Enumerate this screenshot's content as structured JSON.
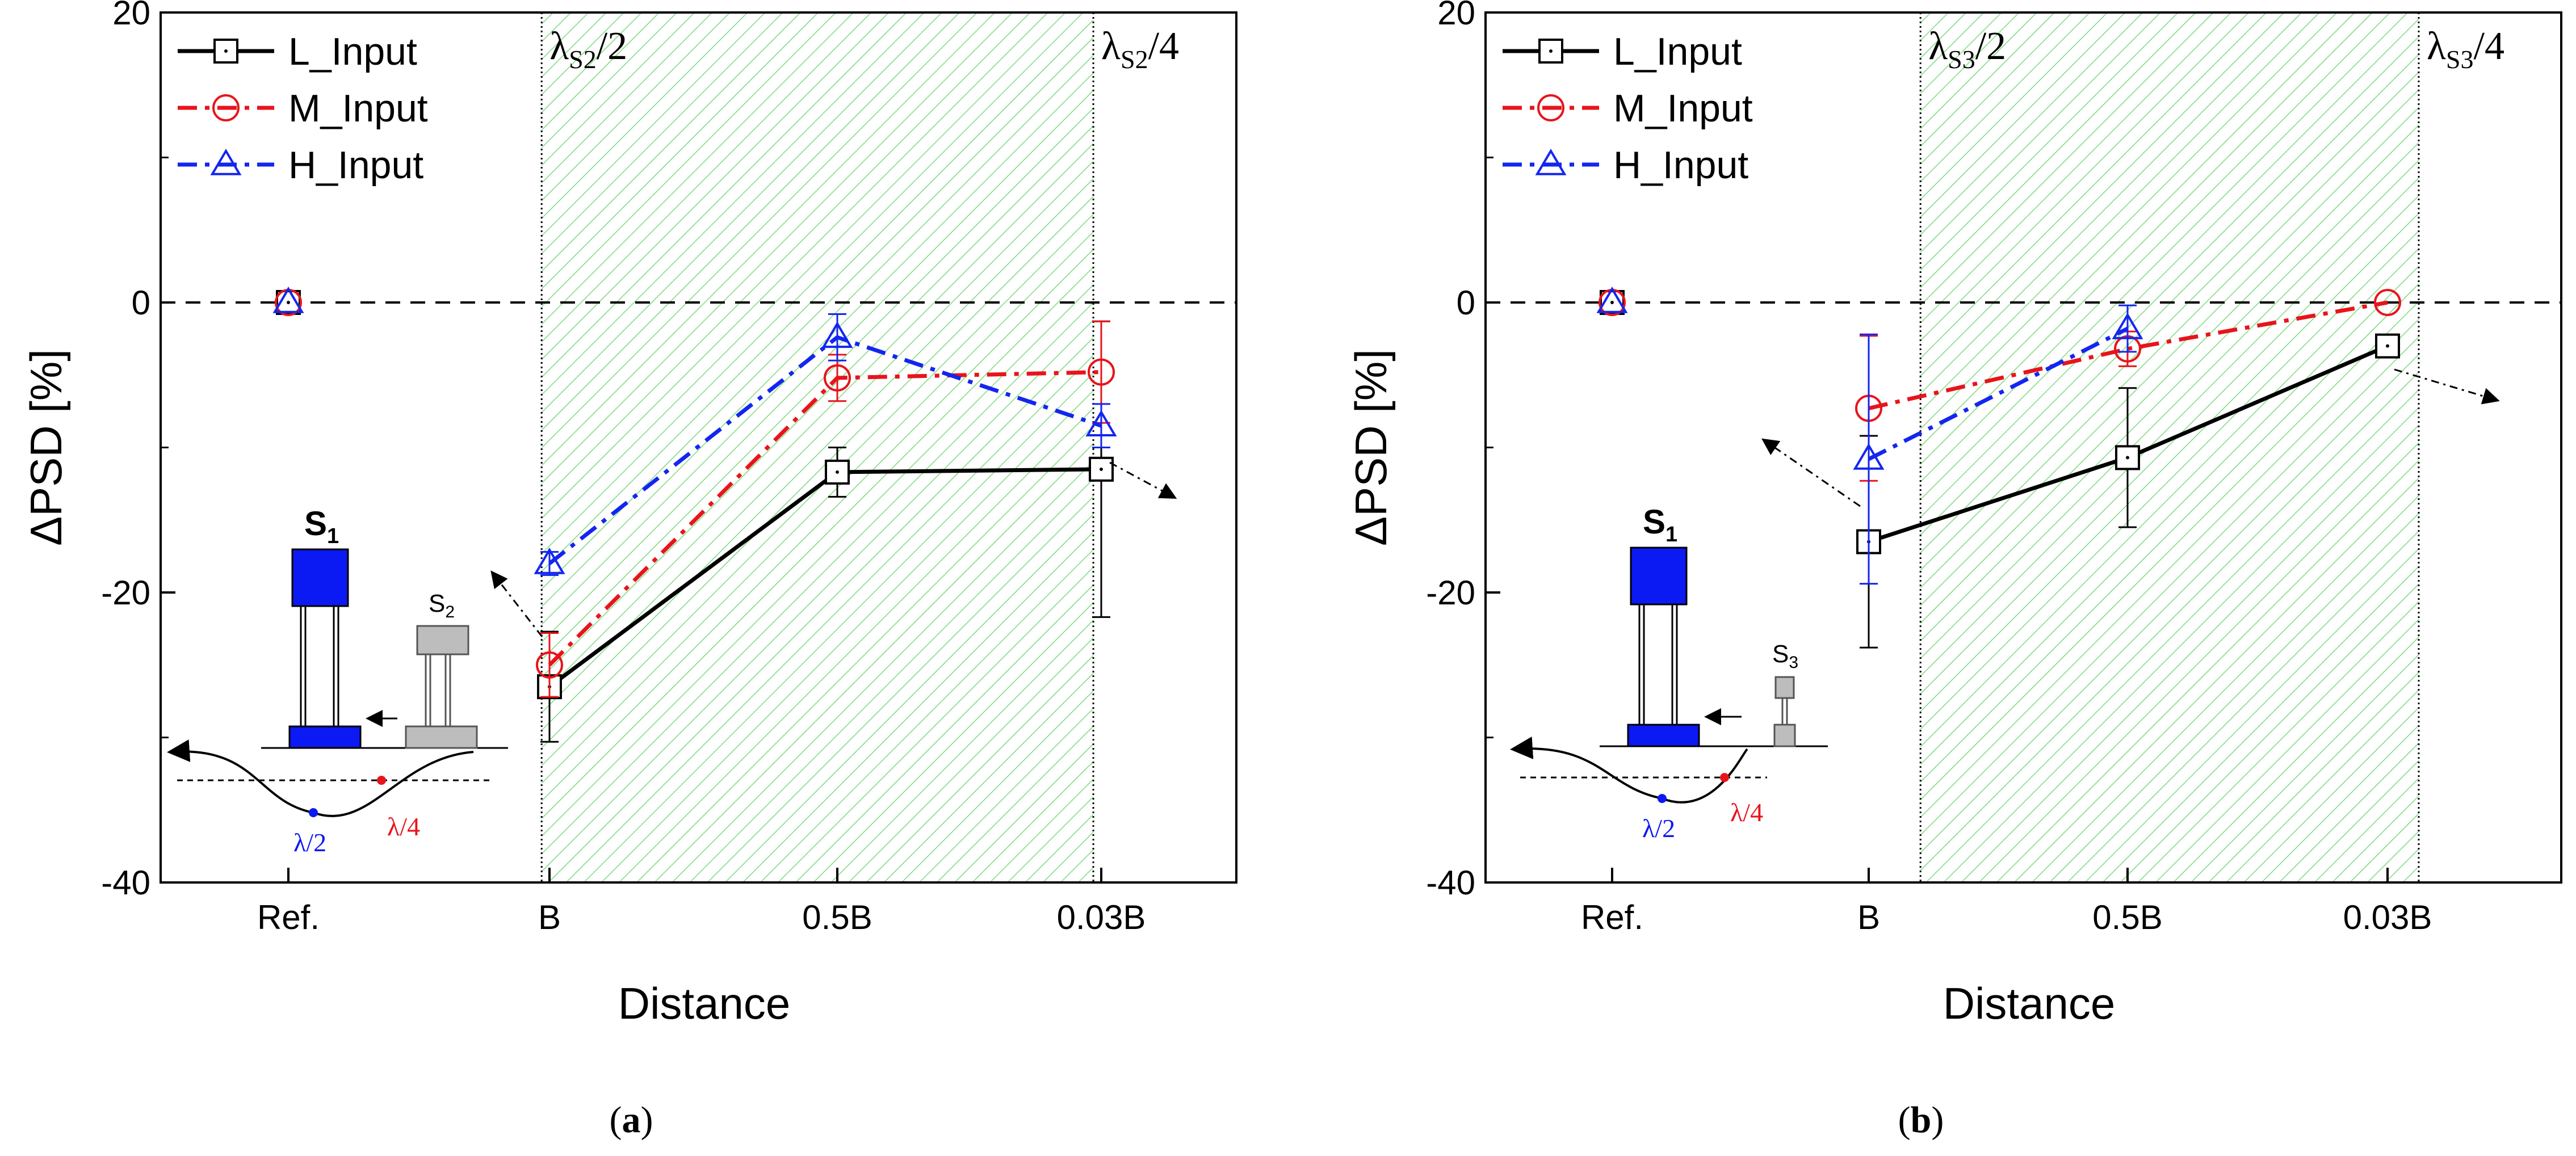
{
  "colors": {
    "L_Input": "#000000",
    "M_Input": "#e8141b",
    "H_Input": "#1326f0",
    "hatch": "#7fd97f",
    "inset_blue": "#0b1af2",
    "inset_gray": "#bdbdbd"
  },
  "chart_data": [
    {
      "type": "line",
      "panel": "(a)",
      "caption_letter": "a",
      "xlabel": "Distance",
      "ylabel": "ΔPSD [%]",
      "ylim": [
        -40,
        20
      ],
      "yticks": [
        "20",
        "0",
        "-20",
        "-40"
      ],
      "categories": [
        "Ref.",
        "B",
        "0.5B",
        "0.03B"
      ],
      "reference_line_y": 0,
      "regions": [
        {
          "label_main": "λ",
          "label_sub": "S2",
          "label_tail": "/2",
          "shaded": true
        },
        {
          "label_main": "λ",
          "label_sub": "S2",
          "label_tail": "/4",
          "shaded": false
        }
      ],
      "region_boundaries": [
        0.97,
        2.97
      ],
      "legend": [
        "L_Input",
        "M_Input",
        "H_Input"
      ],
      "series": [
        {
          "name": "L_Input",
          "values": [
            0,
            -26.5,
            -11.7,
            -11.5
          ],
          "err": [
            0.4,
            3.8,
            1.7,
            10.2
          ]
        },
        {
          "name": "M_Input",
          "values": [
            0,
            -25,
            -5.2,
            -4.8
          ],
          "err": [
            0.4,
            2.2,
            1.6,
            3.5
          ]
        },
        {
          "name": "H_Input",
          "values": [
            0,
            -18,
            -2.4,
            -8.5
          ],
          "err": [
            0.4,
            0.8,
            1.6,
            1.5
          ]
        }
      ],
      "inset": {
        "title_main": "S",
        "title_sub": "1",
        "second_main": "S",
        "second_sub": "2",
        "lambda_half": "λ/2",
        "lambda_quarter": "λ/4"
      }
    },
    {
      "type": "line",
      "panel": "(b)",
      "caption_letter": "b",
      "xlabel": "Distance",
      "ylabel": "ΔPSD [%]",
      "ylim": [
        -40,
        20
      ],
      "yticks": [
        "20",
        "0",
        "-20",
        "-40"
      ],
      "categories": [
        "Ref.",
        "B",
        "0.5B",
        "0.03B"
      ],
      "reference_line_y": 0,
      "regions": [
        {
          "label_main": "λ",
          "label_sub": "S3",
          "label_tail": "/2",
          "shaded": true
        },
        {
          "label_main": "λ",
          "label_sub": "S3",
          "label_tail": "/4",
          "shaded": false
        }
      ],
      "region_boundaries": [
        1.2,
        3.12
      ],
      "legend": [
        "L_Input",
        "M_Input",
        "H_Input"
      ],
      "series": [
        {
          "name": "L_Input",
          "values": [
            0,
            -16.5,
            -10.7,
            -3
          ],
          "err": [
            0.4,
            7.3,
            4.8,
            0.5
          ]
        },
        {
          "name": "M_Input",
          "values": [
            0,
            -7.3,
            -3.2,
            0
          ],
          "err": [
            0.4,
            5.0,
            1.2,
            0.3
          ]
        },
        {
          "name": "H_Input",
          "values": [
            0,
            -10.8,
            -1.8,
            null
          ],
          "err": [
            0.4,
            8.6,
            1.6,
            0
          ]
        }
      ],
      "inset": {
        "title_main": "S",
        "title_sub": "1",
        "second_main": "S",
        "second_sub": "3",
        "lambda_half": "λ/2",
        "lambda_quarter": "λ/4"
      }
    }
  ]
}
